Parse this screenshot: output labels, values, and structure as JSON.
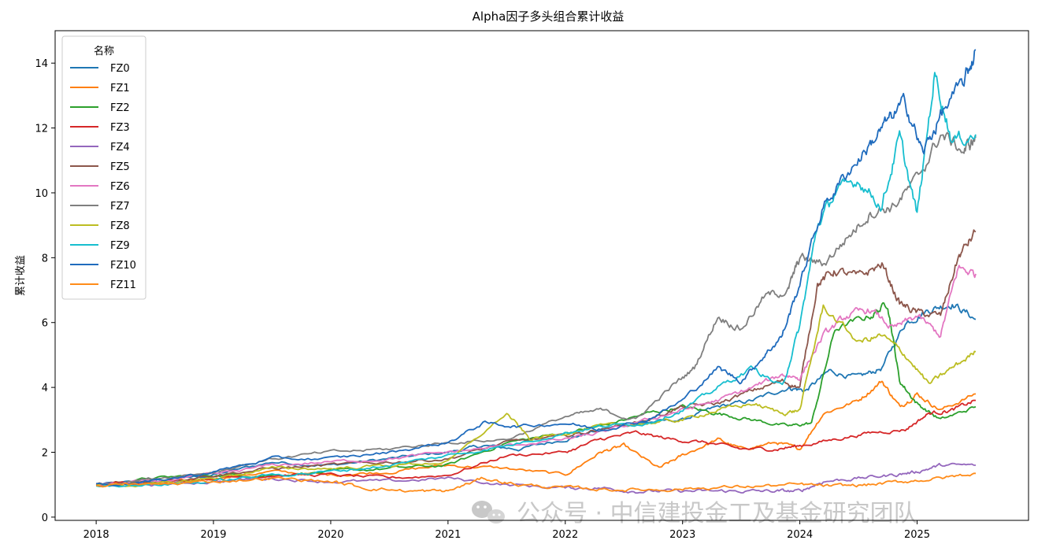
{
  "chart_data": {
    "type": "line",
    "title": "Alpha因子多头组合累计收益",
    "ylabel": "累计收益",
    "xlabel": "",
    "ylim": [
      -0.1,
      15.0
    ],
    "yticks": [
      0,
      2,
      4,
      6,
      8,
      10,
      12,
      14
    ],
    "xlim": [
      2017.65,
      2025.95
    ],
    "xticks": [
      "2018",
      "2019",
      "2020",
      "2021",
      "2022",
      "2023",
      "2024",
      "2025"
    ],
    "legend": {
      "title": "名称",
      "placement": "top-left"
    },
    "grid": false,
    "series": [
      {
        "name": "FZ0",
        "color": "#1f77b4",
        "points": [
          [
            2018.0,
            1.0
          ],
          [
            2018.5,
            1.1
          ],
          [
            2019.0,
            1.3
          ],
          [
            2019.5,
            1.7
          ],
          [
            2020.0,
            1.6
          ],
          [
            2020.5,
            1.8
          ],
          [
            2021.0,
            2.0
          ],
          [
            2021.3,
            2.2
          ],
          [
            2021.6,
            2.1
          ],
          [
            2022.0,
            2.4
          ],
          [
            2022.3,
            2.7
          ],
          [
            2022.6,
            2.9
          ],
          [
            2023.0,
            3.0
          ],
          [
            2023.3,
            3.4
          ],
          [
            2023.6,
            3.6
          ],
          [
            2023.9,
            4.0
          ],
          [
            2024.05,
            3.9
          ],
          [
            2024.25,
            4.5
          ],
          [
            2024.5,
            4.3
          ],
          [
            2024.7,
            4.6
          ],
          [
            2024.9,
            6.0
          ],
          [
            2025.1,
            6.4
          ],
          [
            2025.3,
            6.6
          ],
          [
            2025.5,
            6.1
          ]
        ]
      },
      {
        "name": "FZ1",
        "color": "#ff7f0e",
        "points": [
          [
            2018.0,
            1.0
          ],
          [
            2018.5,
            1.0
          ],
          [
            2019.0,
            1.2
          ],
          [
            2019.5,
            1.4
          ],
          [
            2020.0,
            1.3
          ],
          [
            2020.5,
            1.4
          ],
          [
            2021.0,
            1.6
          ],
          [
            2021.5,
            1.5
          ],
          [
            2022.0,
            1.3
          ],
          [
            2022.3,
            2.0
          ],
          [
            2022.5,
            2.2
          ],
          [
            2022.8,
            1.5
          ],
          [
            2023.0,
            1.9
          ],
          [
            2023.3,
            2.4
          ],
          [
            2023.5,
            2.1
          ],
          [
            2023.8,
            2.3
          ],
          [
            2024.0,
            2.1
          ],
          [
            2024.2,
            3.2
          ],
          [
            2024.5,
            3.6
          ],
          [
            2024.7,
            4.2
          ],
          [
            2024.85,
            3.4
          ],
          [
            2025.0,
            3.8
          ],
          [
            2025.2,
            3.3
          ],
          [
            2025.5,
            3.8
          ]
        ]
      },
      {
        "name": "FZ2",
        "color": "#2ca02c",
        "points": [
          [
            2018.0,
            1.0
          ],
          [
            2018.5,
            1.2
          ],
          [
            2019.0,
            1.3
          ],
          [
            2019.5,
            1.3
          ],
          [
            2020.0,
            1.4
          ],
          [
            2020.5,
            1.5
          ],
          [
            2021.0,
            1.6
          ],
          [
            2021.5,
            2.3
          ],
          [
            2022.0,
            2.6
          ],
          [
            2022.3,
            2.8
          ],
          [
            2022.7,
            3.2
          ],
          [
            2023.0,
            3.4
          ],
          [
            2023.3,
            3.2
          ],
          [
            2023.6,
            3.0
          ],
          [
            2023.9,
            2.8
          ],
          [
            2024.1,
            2.9
          ],
          [
            2024.3,
            5.8
          ],
          [
            2024.6,
            6.2
          ],
          [
            2024.75,
            6.6
          ],
          [
            2024.85,
            4.2
          ],
          [
            2025.0,
            3.5
          ],
          [
            2025.2,
            3.0
          ],
          [
            2025.5,
            3.4
          ]
        ]
      },
      {
        "name": "FZ3",
        "color": "#d62728",
        "points": [
          [
            2018.0,
            1.0
          ],
          [
            2018.5,
            1.1
          ],
          [
            2019.0,
            1.2
          ],
          [
            2019.5,
            1.3
          ],
          [
            2020.0,
            1.3
          ],
          [
            2020.5,
            1.2
          ],
          [
            2021.0,
            1.3
          ],
          [
            2021.5,
            1.9
          ],
          [
            2022.0,
            2.0
          ],
          [
            2022.3,
            2.4
          ],
          [
            2022.6,
            2.6
          ],
          [
            2022.9,
            2.4
          ],
          [
            2023.2,
            2.3
          ],
          [
            2023.5,
            2.1
          ],
          [
            2023.8,
            2.1
          ],
          [
            2024.0,
            2.2
          ],
          [
            2024.3,
            2.4
          ],
          [
            2024.6,
            2.6
          ],
          [
            2024.9,
            2.7
          ],
          [
            2025.1,
            3.2
          ],
          [
            2025.3,
            3.3
          ],
          [
            2025.5,
            3.6
          ]
        ]
      },
      {
        "name": "FZ4",
        "color": "#9467bd",
        "points": [
          [
            2018.0,
            1.0
          ],
          [
            2018.5,
            1.0
          ],
          [
            2019.0,
            1.1
          ],
          [
            2019.5,
            1.2
          ],
          [
            2020.0,
            1.1
          ],
          [
            2020.5,
            1.1
          ],
          [
            2021.0,
            1.2
          ],
          [
            2021.5,
            1.0
          ],
          [
            2022.0,
            0.9
          ],
          [
            2022.3,
            0.9
          ],
          [
            2022.6,
            0.8
          ],
          [
            2022.9,
            0.8
          ],
          [
            2023.2,
            0.8
          ],
          [
            2023.5,
            0.8
          ],
          [
            2023.8,
            0.8
          ],
          [
            2024.0,
            0.8
          ],
          [
            2024.2,
            1.1
          ],
          [
            2024.5,
            1.2
          ],
          [
            2024.8,
            1.3
          ],
          [
            2025.0,
            1.4
          ],
          [
            2025.2,
            1.6
          ],
          [
            2025.5,
            1.6
          ]
        ]
      },
      {
        "name": "FZ5",
        "color": "#8c564b",
        "points": [
          [
            2018.0,
            1.0
          ],
          [
            2018.5,
            1.1
          ],
          [
            2019.0,
            1.3
          ],
          [
            2019.5,
            1.5
          ],
          [
            2020.0,
            1.6
          ],
          [
            2020.5,
            1.7
          ],
          [
            2021.0,
            1.8
          ],
          [
            2021.5,
            2.3
          ],
          [
            2022.0,
            2.5
          ],
          [
            2022.3,
            2.7
          ],
          [
            2022.7,
            3.0
          ],
          [
            2023.0,
            3.4
          ],
          [
            2023.3,
            3.5
          ],
          [
            2023.6,
            3.9
          ],
          [
            2023.85,
            4.2
          ],
          [
            2024.0,
            4.0
          ],
          [
            2024.15,
            7.2
          ],
          [
            2024.3,
            7.6
          ],
          [
            2024.5,
            7.4
          ],
          [
            2024.7,
            7.8
          ],
          [
            2024.85,
            6.6
          ],
          [
            2025.0,
            6.3
          ],
          [
            2025.2,
            6.2
          ],
          [
            2025.35,
            8.0
          ],
          [
            2025.5,
            8.8
          ]
        ]
      },
      {
        "name": "FZ6",
        "color": "#e377c2",
        "points": [
          [
            2018.0,
            1.0
          ],
          [
            2018.5,
            1.1
          ],
          [
            2019.0,
            1.3
          ],
          [
            2019.5,
            1.6
          ],
          [
            2020.0,
            1.7
          ],
          [
            2020.5,
            1.8
          ],
          [
            2021.0,
            2.0
          ],
          [
            2021.5,
            2.2
          ],
          [
            2022.0,
            2.4
          ],
          [
            2022.3,
            2.6
          ],
          [
            2022.7,
            3.0
          ],
          [
            2023.0,
            3.3
          ],
          [
            2023.3,
            3.6
          ],
          [
            2023.6,
            4.0
          ],
          [
            2023.85,
            4.4
          ],
          [
            2024.0,
            4.3
          ],
          [
            2024.2,
            5.6
          ],
          [
            2024.4,
            6.2
          ],
          [
            2024.6,
            6.4
          ],
          [
            2024.8,
            5.8
          ],
          [
            2025.0,
            6.2
          ],
          [
            2025.2,
            5.6
          ],
          [
            2025.35,
            7.7
          ],
          [
            2025.5,
            7.5
          ]
        ]
      },
      {
        "name": "FZ7",
        "color": "#7f7f7f",
        "points": [
          [
            2018.0,
            1.0
          ],
          [
            2018.5,
            1.2
          ],
          [
            2019.0,
            1.4
          ],
          [
            2019.5,
            1.8
          ],
          [
            2020.0,
            2.0
          ],
          [
            2020.5,
            2.1
          ],
          [
            2021.0,
            2.3
          ],
          [
            2021.5,
            2.4
          ],
          [
            2022.0,
            3.1
          ],
          [
            2022.3,
            3.3
          ],
          [
            2022.6,
            3.0
          ],
          [
            2022.9,
            4.0
          ],
          [
            2023.1,
            4.6
          ],
          [
            2023.3,
            6.2
          ],
          [
            2023.5,
            5.8
          ],
          [
            2023.7,
            6.8
          ],
          [
            2023.9,
            7.0
          ],
          [
            2024.0,
            8.0
          ],
          [
            2024.2,
            7.8
          ],
          [
            2024.4,
            8.6
          ],
          [
            2024.6,
            9.4
          ],
          [
            2024.8,
            9.6
          ],
          [
            2025.0,
            10.4
          ],
          [
            2025.2,
            11.8
          ],
          [
            2025.4,
            11.3
          ],
          [
            2025.5,
            11.7
          ]
        ]
      },
      {
        "name": "FZ8",
        "color": "#bcbd22",
        "points": [
          [
            2018.0,
            1.0
          ],
          [
            2018.5,
            1.0
          ],
          [
            2019.0,
            1.2
          ],
          [
            2019.5,
            1.5
          ],
          [
            2020.0,
            1.5
          ],
          [
            2020.5,
            1.6
          ],
          [
            2021.0,
            1.7
          ],
          [
            2021.5,
            3.2
          ],
          [
            2021.7,
            2.4
          ],
          [
            2022.0,
            2.6
          ],
          [
            2022.3,
            2.8
          ],
          [
            2022.7,
            2.9
          ],
          [
            2023.0,
            3.0
          ],
          [
            2023.3,
            3.3
          ],
          [
            2023.6,
            3.5
          ],
          [
            2023.85,
            3.2
          ],
          [
            2024.0,
            3.3
          ],
          [
            2024.2,
            6.5
          ],
          [
            2024.5,
            5.4
          ],
          [
            2024.7,
            5.6
          ],
          [
            2024.9,
            5.0
          ],
          [
            2025.1,
            4.1
          ],
          [
            2025.3,
            4.6
          ],
          [
            2025.5,
            5.1
          ]
        ]
      },
      {
        "name": "FZ9",
        "color": "#17becf",
        "points": [
          [
            2018.0,
            1.0
          ],
          [
            2018.5,
            1.0
          ],
          [
            2019.0,
            1.1
          ],
          [
            2019.5,
            1.3
          ],
          [
            2020.0,
            1.4
          ],
          [
            2020.5,
            1.6
          ],
          [
            2021.0,
            1.9
          ],
          [
            2021.5,
            2.2
          ],
          [
            2022.0,
            2.6
          ],
          [
            2022.3,
            2.8
          ],
          [
            2022.7,
            2.9
          ],
          [
            2023.0,
            3.3
          ],
          [
            2023.3,
            4.0
          ],
          [
            2023.6,
            4.6
          ],
          [
            2023.85,
            4.0
          ],
          [
            2024.0,
            5.9
          ],
          [
            2024.15,
            9.0
          ],
          [
            2024.3,
            10.0
          ],
          [
            2024.5,
            10.4
          ],
          [
            2024.7,
            9.6
          ],
          [
            2024.85,
            11.7
          ],
          [
            2025.0,
            9.3
          ],
          [
            2025.15,
            13.7
          ],
          [
            2025.3,
            11.6
          ],
          [
            2025.5,
            11.8
          ]
        ]
      },
      {
        "name": "FZ10",
        "color": "#1f6bbd",
        "points": [
          [
            2018.0,
            1.0
          ],
          [
            2018.5,
            1.1
          ],
          [
            2019.0,
            1.4
          ],
          [
            2019.5,
            1.8
          ],
          [
            2020.0,
            1.8
          ],
          [
            2020.5,
            2.0
          ],
          [
            2021.0,
            2.3
          ],
          [
            2021.3,
            2.9
          ],
          [
            2021.6,
            2.8
          ],
          [
            2022.0,
            2.9
          ],
          [
            2022.3,
            2.7
          ],
          [
            2022.7,
            3.0
          ],
          [
            2023.0,
            3.6
          ],
          [
            2023.3,
            4.6
          ],
          [
            2023.5,
            4.2
          ],
          [
            2023.7,
            5.0
          ],
          [
            2023.85,
            5.6
          ],
          [
            2024.0,
            7.2
          ],
          [
            2024.2,
            9.6
          ],
          [
            2024.4,
            10.6
          ],
          [
            2024.6,
            11.5
          ],
          [
            2024.75,
            12.2
          ],
          [
            2024.9,
            12.8
          ],
          [
            2025.05,
            11.2
          ],
          [
            2025.2,
            12.4
          ],
          [
            2025.4,
            13.4
          ],
          [
            2025.5,
            14.4
          ]
        ]
      },
      {
        "name": "FZ11",
        "color": "#ff8c1a",
        "points": [
          [
            2018.0,
            1.0
          ],
          [
            2018.5,
            1.0
          ],
          [
            2019.0,
            1.1
          ],
          [
            2019.5,
            1.2
          ],
          [
            2020.0,
            1.1
          ],
          [
            2020.3,
            0.9
          ],
          [
            2020.7,
            0.8
          ],
          [
            2021.0,
            0.8
          ],
          [
            2021.3,
            1.2
          ],
          [
            2021.6,
            1.0
          ],
          [
            2022.0,
            0.9
          ],
          [
            2022.4,
            0.85
          ],
          [
            2022.8,
            0.85
          ],
          [
            2023.2,
            0.9
          ],
          [
            2023.6,
            0.95
          ],
          [
            2024.0,
            1.0
          ],
          [
            2024.3,
            0.95
          ],
          [
            2024.6,
            1.0
          ],
          [
            2024.9,
            1.1
          ],
          [
            2025.2,
            1.2
          ],
          [
            2025.5,
            1.35
          ]
        ]
      }
    ]
  },
  "watermark": {
    "text": "公众号 · 中信建投金工及基金研究团队",
    "icon": "wechat-icon"
  }
}
